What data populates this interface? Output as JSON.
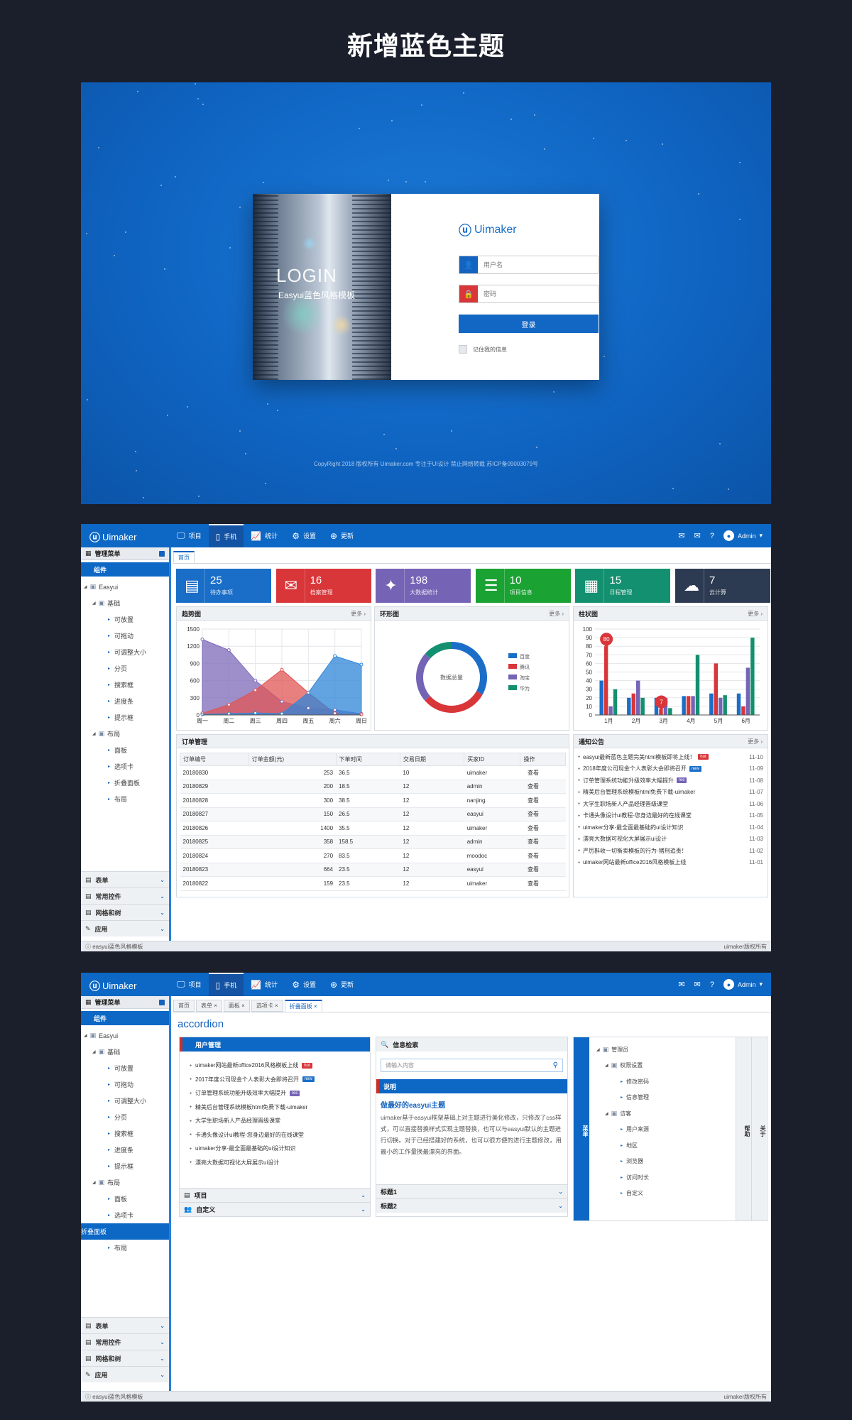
{
  "page_title": "新增蓝色主题",
  "login": {
    "image_title": "LOGIN",
    "image_subtitle": "Easyui蓝色风格模板",
    "logo": "Uimaker",
    "username_placeholder": "用户名",
    "password_placeholder": "密码",
    "login_button": "登录",
    "remember_label": "记住我的信息",
    "copyright": "CopyRight 2018  版权所有  Uimaker.com  专注于UI设计  禁止网络转载  苏ICP备09003079号",
    "colors": {
      "primary": "#1367c4",
      "user_icon_bg": "#1463be",
      "lock_icon_bg": "#d9363a"
    }
  },
  "app": {
    "logo": "Uimaker",
    "nav": [
      {
        "icon": "monitor-icon",
        "label": "项目"
      },
      {
        "icon": "mobile-icon",
        "label": "手机"
      },
      {
        "icon": "chart-icon",
        "label": "统计"
      },
      {
        "icon": "gear-icon",
        "label": "设置"
      },
      {
        "icon": "arrow-up-icon",
        "label": "更新"
      }
    ],
    "admin": "Admin",
    "sidebar_header": "管理菜单",
    "sidebar_selected": "组件",
    "tree": {
      "root": "Easyui",
      "basic": "基础",
      "basic_items": [
        "可放置",
        "可拖动",
        "可调整大小",
        "分页",
        "搜索框",
        "进度条",
        "提示框"
      ],
      "layout": "布局",
      "layout_items": [
        "面板",
        "选项卡",
        "折叠面板",
        "布局"
      ]
    },
    "sidebar_groups": [
      "表单",
      "常用控件",
      "网格和树",
      "应用"
    ],
    "footer_left": "easyui蓝色风格模板",
    "footer_right": "uimaker版权所有"
  },
  "dashboard": {
    "tab": "首页",
    "cards": [
      {
        "num": "25",
        "label": "待办事项",
        "color": "#1a6ec8",
        "icon": "document-icon"
      },
      {
        "num": "16",
        "label": "档案管理",
        "color": "#d9363a",
        "icon": "archive-icon"
      },
      {
        "num": "198",
        "label": "大数据统计",
        "color": "#7563b5",
        "icon": "network-icon"
      },
      {
        "num": "10",
        "label": "项目信息",
        "color": "#1aa233",
        "icon": "list-icon"
      },
      {
        "num": "15",
        "label": "日程管理",
        "color": "#13906f",
        "icon": "calendar-icon"
      },
      {
        "num": "7",
        "label": "云计算",
        "color": "#2c3a52",
        "icon": "cloud-icon"
      }
    ],
    "more": "更多 ›",
    "trend_title": "趋势图",
    "donut_title": "环形图",
    "bar_title": "柱状图",
    "orders_title": "订单管理",
    "notice_title": "通知公告",
    "order_columns": [
      "订单编号",
      "订单金额(元)",
      "下单时间",
      "交易日期",
      "买家ID",
      "操作"
    ],
    "orders": [
      [
        "20180830",
        "253",
        "36.5",
        "10",
        "uimaker",
        "查看"
      ],
      [
        "20180829",
        "200",
        "18.5",
        "12",
        "admin",
        "查看"
      ],
      [
        "20180828",
        "300",
        "38.5",
        "12",
        "nanjing",
        "查看"
      ],
      [
        "20180827",
        "150",
        "26.5",
        "12",
        "easyui",
        "查看"
      ],
      [
        "20180826",
        "1400",
        "35.5",
        "12",
        "uimaker",
        "查看"
      ],
      [
        "20180825",
        "358",
        "158.5",
        "12",
        "admin",
        "查看"
      ],
      [
        "20180824",
        "270",
        "83.5",
        "12",
        "moodoc",
        "查看"
      ],
      [
        "20180823",
        "664",
        "23.5",
        "12",
        "easyui",
        "查看"
      ],
      [
        "20180822",
        "159",
        "23.5",
        "12",
        "uimaker",
        "查看"
      ]
    ],
    "notices": [
      {
        "text": "easyui最新蓝色主题完美html模板即将上线！",
        "badge": "hot",
        "badge_color": "#d9363a",
        "date": "11-10"
      },
      {
        "text": "2018年度公司现金个人表彰大会即将召开",
        "badge": "new",
        "badge_color": "#1a6ec8",
        "date": "11-09"
      },
      {
        "text": "订单管理系统功能升级效率大幅提升",
        "badge": "rec",
        "badge_color": "#7563b5",
        "date": "11-08"
      },
      {
        "text": "精美后台管理系统模板html免费下载-uimaker",
        "badge": "",
        "badge_color": "",
        "date": "11-07"
      },
      {
        "text": "大学生职场新人产品经理晋级课堂",
        "badge": "",
        "badge_color": "",
        "date": "11-06"
      },
      {
        "text": "卡通头像设计ui教程-您身边最好的在线课堂",
        "badge": "",
        "badge_color": "",
        "date": "11-05"
      },
      {
        "text": "uimaker分享-最全面最基础的ui设计知识",
        "badge": "",
        "badge_color": "",
        "date": "11-04"
      },
      {
        "text": "漂亮大数据可视化大屏展示ui设计",
        "badge": "",
        "badge_color": "",
        "date": "11-03"
      },
      {
        "text": "严厉斟收一切衡卖模板的行为-猪刑追责！",
        "badge": "",
        "badge_color": "",
        "date": "11-02"
      },
      {
        "text": "uimaker网站最新office2016风格模板上线",
        "badge": "",
        "badge_color": "",
        "date": "11-01"
      }
    ]
  },
  "chart_data": [
    {
      "type": "area",
      "title": "",
      "categories": [
        "周一",
        "周二",
        "周三",
        "周四",
        "周五",
        "周六",
        "周日"
      ],
      "ylim": [
        0,
        1500
      ],
      "yticks": [
        0,
        300,
        600,
        900,
        1200,
        1500
      ],
      "grid": true,
      "series": [
        {
          "color": "#7d6ab8",
          "values": [
            1320,
            1132,
            601,
            234,
            120,
            90,
            20
          ]
        },
        {
          "color": "#e05555",
          "values": [
            30,
            182,
            434,
            791,
            390,
            30,
            10
          ]
        },
        {
          "color": "#2d86d8",
          "values": [
            10,
            23,
            34,
            23,
            390,
            1030,
            880
          ]
        }
      ]
    },
    {
      "type": "pie",
      "donut": true,
      "center_label": "数据总量",
      "legend_position": "right",
      "labels": [
        "百度",
        "腾讯",
        "淘宝",
        "华为"
      ],
      "colors": [
        "#1a6ec8",
        "#d9363a",
        "#7563b5",
        "#13906f"
      ],
      "values": [
        335,
        310,
        234,
        135
      ]
    },
    {
      "type": "bar",
      "title": "",
      "categories": [
        "1月",
        "2月",
        "3月",
        "4月",
        "5月",
        "6月"
      ],
      "ylim": [
        0,
        100
      ],
      "yticks": [
        0,
        10,
        20,
        30,
        40,
        50,
        60,
        70,
        80,
        90,
        100
      ],
      "grid": true,
      "series": [
        {
          "color": "#1a6ec8",
          "values": [
            40,
            20,
            20,
            22,
            25,
            25
          ]
        },
        {
          "color": "#d9363a",
          "values": [
            80,
            25,
            7,
            22,
            60,
            10
          ]
        },
        {
          "color": "#7563b5",
          "values": [
            10,
            40,
            20,
            22,
            20,
            55
          ]
        },
        {
          "color": "#13906f",
          "values": [
            30,
            20,
            8,
            70,
            23,
            90
          ]
        }
      ],
      "annotations": [
        {
          "series": 1,
          "category": "1月",
          "label": "80"
        },
        {
          "series": 1,
          "category": "3月",
          "label": "7"
        }
      ]
    }
  ],
  "accordion": {
    "tabs": [
      "首页",
      "表单",
      "面板",
      "选项卡",
      "折叠面板"
    ],
    "title": "accordion",
    "user_panel_title": "用户管理",
    "user_items": [
      "uimaker网站最新office2016风格模板上线",
      "2017年度公司现金个人表彰大会即将召开",
      "订单管理系统功能升级效率大幅提升",
      "精美后台管理系统模板html免费下载-uimaker",
      "大学生职场新人产品经理晋级课堂",
      "卡通头像设计ui教程-您身边最好的在线课堂",
      "uimaker分享-最全面最基础的ui设计知识",
      "漂亮大数据可视化大屏展示ui设计"
    ],
    "user_badges": [
      {
        "index": 0,
        "text": "hot",
        "color": "#d9363a"
      },
      {
        "index": 1,
        "text": "new",
        "color": "#1a6ec8"
      },
      {
        "index": 2,
        "text": "rec",
        "color": "#7563b5"
      }
    ],
    "group_project": "项目",
    "group_custom": "自定义",
    "search_title": "信息检索",
    "search_placeholder": "请输入内容",
    "desc_title": "说明",
    "desc_heading": "做最好的easyui主题",
    "desc_text": "uimaker基于easyui框架基础上对主题进行美化修改，只修改了css样式，可以直接替换样式实现主题替换，也可以与easyui默认的主题进行切换。对于已经搭建好的系统，也可以很方便的进行主题修改，用最小的工作量换最漂亮的界面。",
    "title1": "标题1",
    "title2": "标题2",
    "side_tab_left": "菜单",
    "side_tab_r1": "帮助",
    "side_tab_r2": "关于",
    "tree": {
      "admin": "管理员",
      "perm": "权限设置",
      "perm_items": [
        "修改密码",
        "信息管理"
      ],
      "visitor": "访客",
      "visitor_items": [
        "用户来源",
        "地区",
        "浏览器",
        "访问时长",
        "自定义"
      ]
    }
  }
}
